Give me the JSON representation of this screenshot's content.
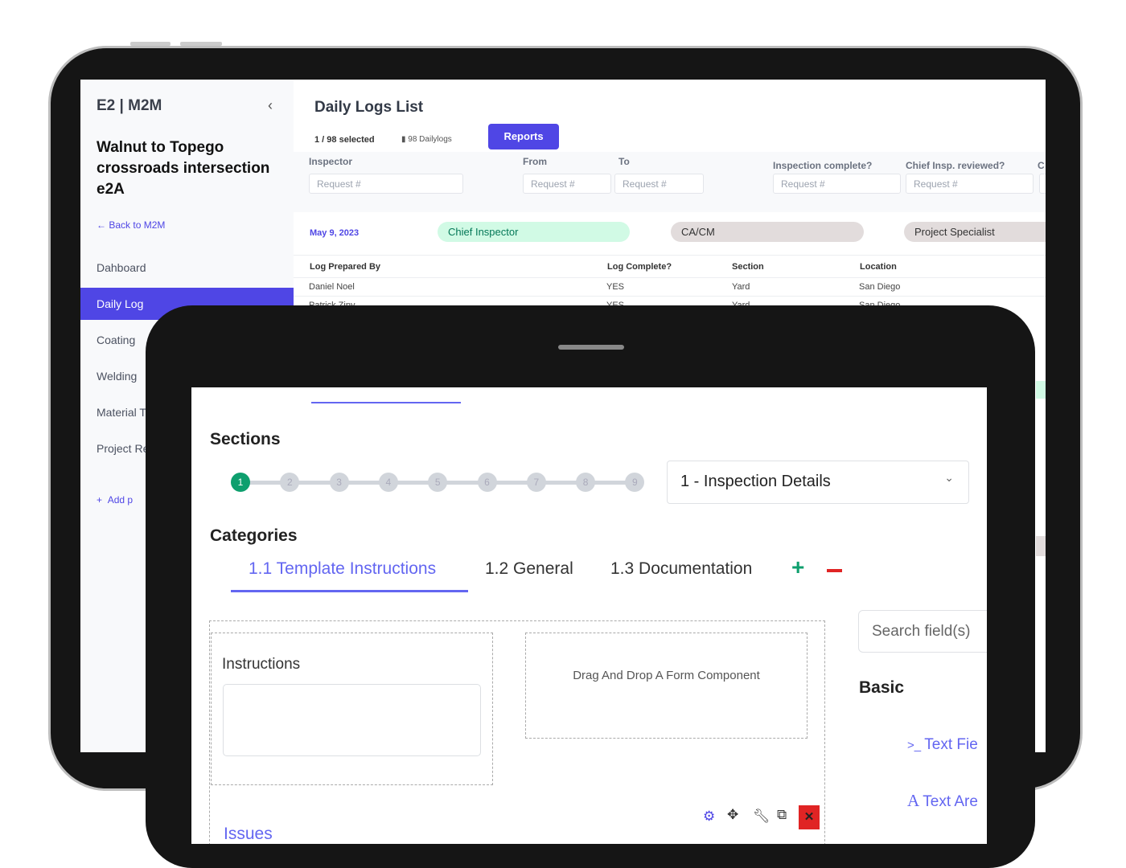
{
  "back_app": {
    "logo": "E2 | M2M",
    "project_title": "Walnut to Topego crossroads intersection e2A",
    "back_link": "Back to M2M",
    "nav": [
      "Dahboard",
      "Daily Log",
      "Coating",
      "Welding",
      "Material T",
      "Project Re"
    ],
    "active_nav": "Daily Log",
    "add_link": "Add p",
    "page_title": "Daily Logs List",
    "selected": "1 / 98 selected",
    "count": "98 Dailylogs",
    "reports_button": "Reports",
    "filters": [
      {
        "label": "Inspector",
        "placeholder": "Request #"
      },
      {
        "label": "From",
        "placeholder": "Request #"
      },
      {
        "label": "To",
        "placeholder": "Request #"
      },
      {
        "label": "Inspection complete?",
        "placeholder": "Request #"
      },
      {
        "label": "Chief Insp. reviewed?",
        "placeholder": "Request #"
      },
      {
        "label": "C",
        "placeholder": "R"
      }
    ],
    "date": "May 9, 2023",
    "pills": [
      "Chief Inspector",
      "CA/CM",
      "Project Specialist"
    ],
    "columns": [
      "Log Prepared By",
      "Log Complete?",
      "Section",
      "Location"
    ],
    "rows": [
      [
        "Daniel Noel",
        "YES",
        "Yard",
        "San Diego"
      ],
      [
        "Patrick Zipy",
        "YES",
        "Yard",
        "San Diego"
      ]
    ],
    "colors": {
      "accent": "#4f46e5",
      "pill_green": "#d1fae5",
      "pill_gray": "#e2dcdc"
    }
  },
  "front_app": {
    "sections_title": "Sections",
    "steps": [
      "1",
      "2",
      "3",
      "4",
      "5",
      "6",
      "7",
      "8",
      "9"
    ],
    "active_step": 1,
    "section_select": "1 - Inspection Details",
    "categories_title": "Categories",
    "tabs": [
      "1.1 Template Instructions",
      "1.2 General",
      "1.3 Documentation"
    ],
    "active_tab": "1.1 Template Instructions",
    "instructions_label": "Instructions",
    "dropzone_text": "Drag And Drop A Form Component",
    "issues_label": "Issues",
    "search_placeholder": "Search field(s)",
    "basic_title": "Basic",
    "components": [
      "Text Fie",
      "Text Are"
    ],
    "colors": {
      "accent": "#6366f1",
      "success": "#0e9f6e",
      "danger": "#e02424"
    }
  }
}
